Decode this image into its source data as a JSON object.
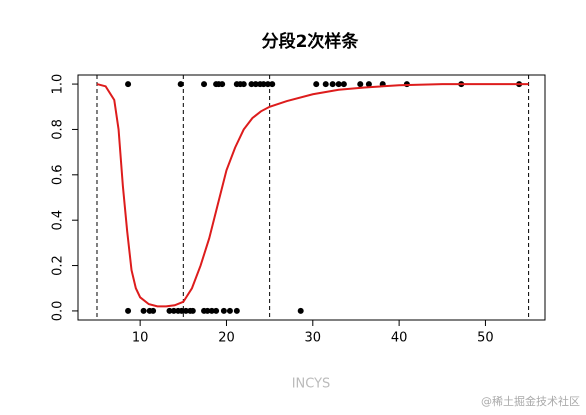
{
  "chart_data": {
    "type": "scatter",
    "title": "分段2次样条",
    "xlabel": "INCYS",
    "xlim": [
      2.8,
      56.9
    ],
    "ylim": [
      -0.04,
      1.04
    ],
    "xticks": [
      10,
      20,
      30,
      40,
      50
    ],
    "yticks": [
      {
        "value": 0,
        "label": "0.0"
      },
      {
        "value": 0.2,
        "label": "0.2"
      },
      {
        "value": 0.4,
        "label": "0.4"
      },
      {
        "value": 0.6,
        "label": "0.6"
      },
      {
        "value": 0.8,
        "label": "0.8"
      },
      {
        "value": 1,
        "label": "1.0"
      }
    ],
    "vlines": [
      5,
      15,
      25,
      55
    ],
    "series": [
      {
        "type": "scatter",
        "color": "#000000",
        "x": [
          8.6,
          14.7,
          17.4,
          18.8,
          19.1,
          19.5,
          21.2,
          21.6,
          22.0,
          22.9,
          23.4,
          23.9,
          24.3,
          24.8,
          25.3,
          30.4,
          31.5,
          32.3,
          33.0,
          33.6,
          35.5,
          36.5,
          38.1,
          40.9,
          47.2,
          53.9,
          8.6,
          10.4,
          11.1,
          11.5,
          13.4,
          13.9,
          14.4,
          14.8,
          15.3,
          15.8,
          16.1,
          17.4,
          17.8,
          18.3,
          18.8,
          19.7,
          20.4,
          21.2,
          28.6
        ],
        "values": [
          1,
          1,
          1,
          1,
          1,
          1,
          1,
          1,
          1,
          1,
          1,
          1,
          1,
          1,
          1,
          1,
          1,
          1,
          1,
          1,
          1,
          1,
          1,
          1,
          1,
          1,
          0,
          0,
          0,
          0,
          0,
          0,
          0,
          0,
          0,
          0,
          0,
          0,
          0,
          0,
          0,
          0,
          0,
          0,
          0
        ]
      },
      {
        "type": "line",
        "color": "#dd1c1c",
        "x": [
          5,
          6,
          7,
          7.5,
          8,
          8.5,
          9,
          9.5,
          10,
          11,
          12,
          13,
          14,
          15,
          16,
          17,
          18,
          19,
          20,
          21,
          22,
          23,
          24,
          25,
          27,
          30,
          33,
          36,
          40,
          45,
          50,
          55
        ],
        "values": [
          1.0,
          0.99,
          0.93,
          0.8,
          0.55,
          0.35,
          0.18,
          0.1,
          0.06,
          0.03,
          0.02,
          0.02,
          0.025,
          0.04,
          0.1,
          0.2,
          0.32,
          0.47,
          0.62,
          0.72,
          0.8,
          0.85,
          0.88,
          0.9,
          0.925,
          0.955,
          0.975,
          0.985,
          0.995,
          1.0,
          1.0,
          1.0
        ]
      }
    ],
    "watermark": "@稀土掘金技术社区"
  }
}
